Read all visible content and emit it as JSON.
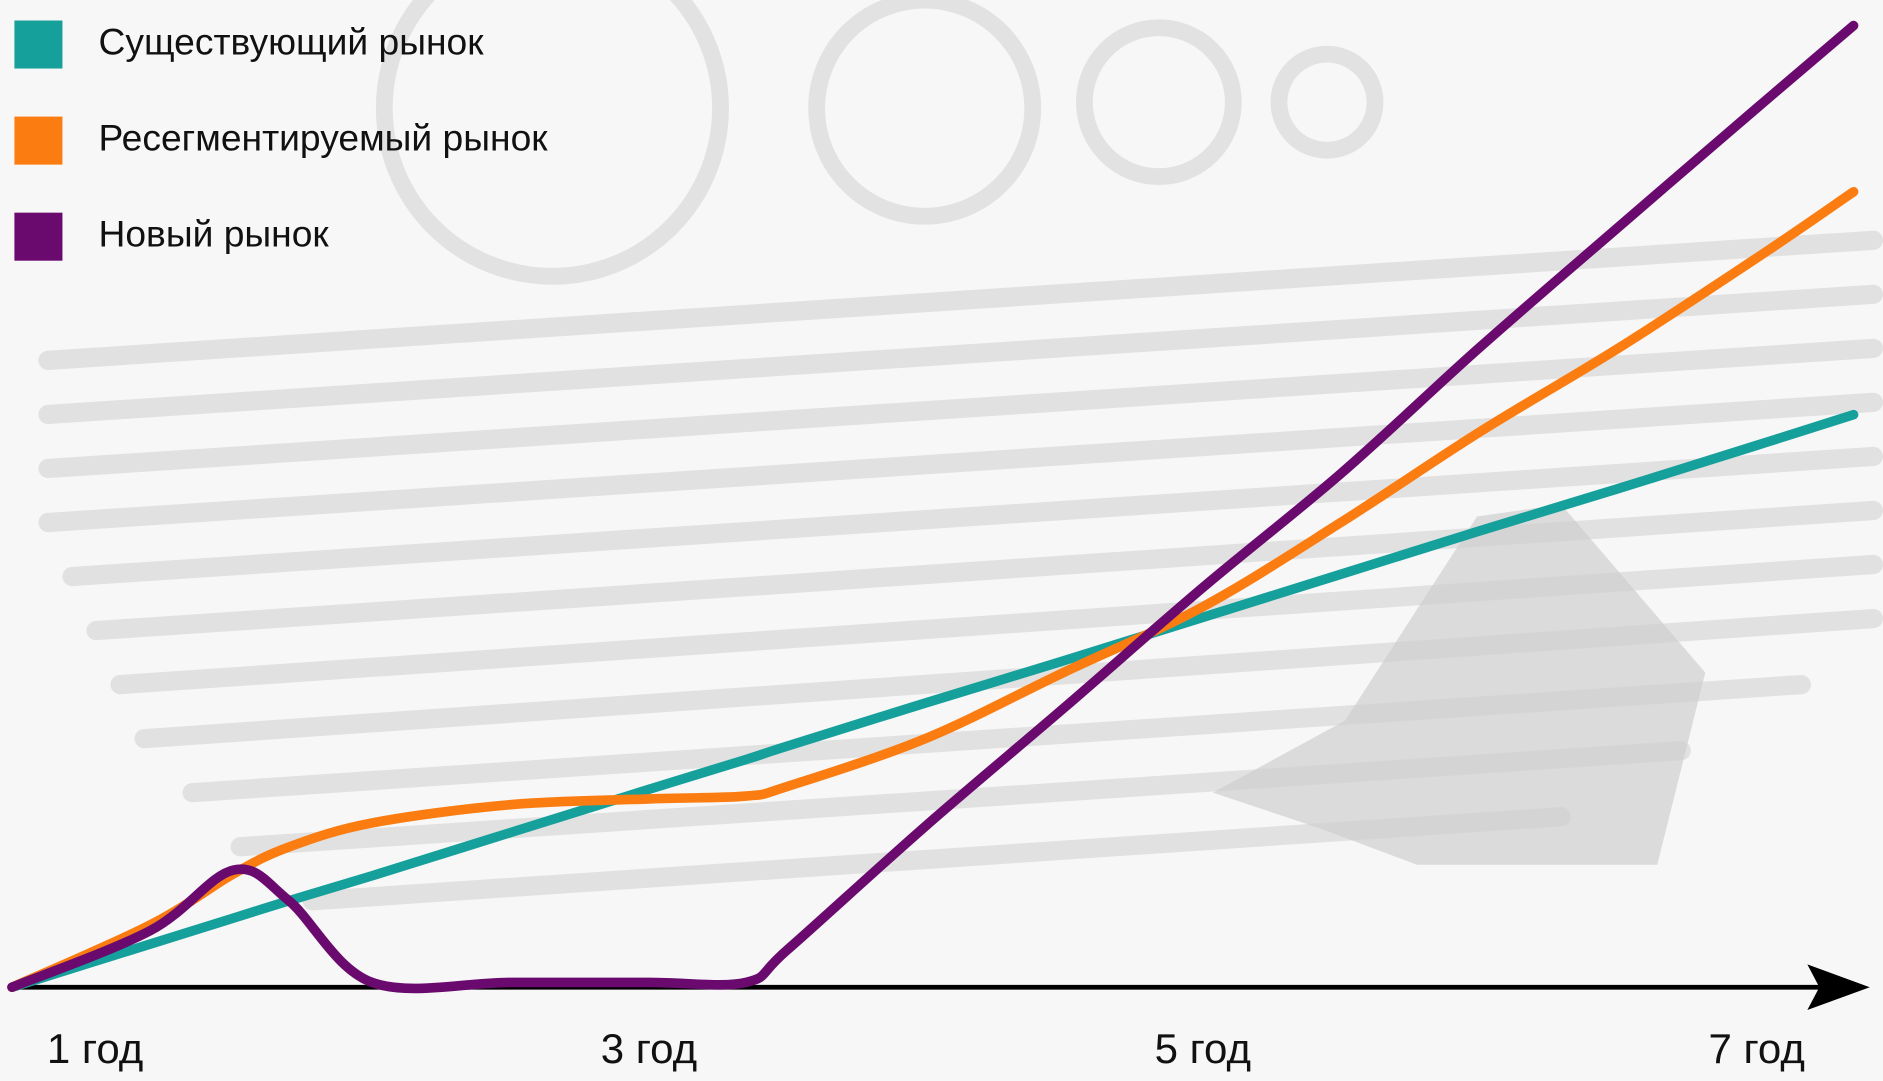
{
  "chart_data": {
    "type": "line",
    "x": [
      0.7,
      1.2,
      1.5,
      1.7,
      2.0,
      2.5,
      3.0,
      3.35,
      3.5,
      4.0,
      4.5,
      5.0,
      5.5,
      6.0,
      6.5,
      7.0,
      7.35
    ],
    "xlim": [
      0.7,
      7.4
    ],
    "xticks": [
      {
        "value": 1,
        "label": "1 год"
      },
      {
        "value": 3,
        "label": "3 год"
      },
      {
        "value": 5,
        "label": "5 год"
      },
      {
        "value": 7,
        "label": "7 год"
      }
    ],
    "ylim": [
      0,
      105
    ],
    "series": [
      {
        "name": "Существующий рынок",
        "color": "#16a09b",
        "values": [
          0,
          4.5,
          7.2,
          9.0,
          11.6,
          16.1,
          20.6,
          23.7,
          25.1,
          29.6,
          34.0,
          38.5,
          43.0,
          47.5,
          51.9,
          56.4,
          59.6
        ]
      },
      {
        "name": "Ресегментируемый рынок",
        "color": "#fb7d12",
        "values": [
          0,
          6.5,
          11.8,
          14.6,
          17.1,
          19.0,
          19.6,
          19.9,
          20.9,
          25.9,
          32.8,
          39.6,
          48.4,
          57.8,
          66.5,
          75.9,
          82.8
        ]
      },
      {
        "name": "Новый рынок",
        "color": "#6a0a6e",
        "values": [
          0,
          5.9,
          12.2,
          9.0,
          0.5,
          0.5,
          0.5,
          0.5,
          3.9,
          16.8,
          29.1,
          41.6,
          53.5,
          66.6,
          79.1,
          91.5,
          100.1
        ]
      }
    ]
  }
}
